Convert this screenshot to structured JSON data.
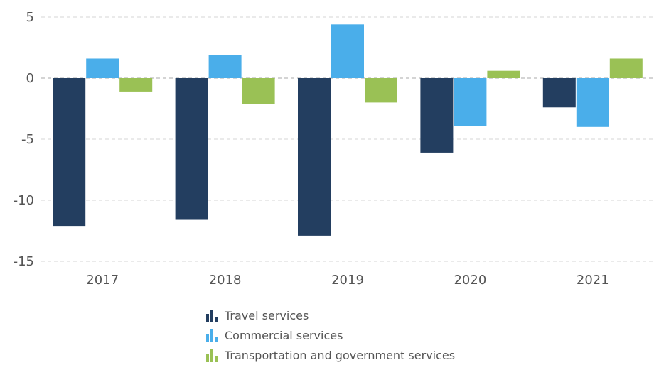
{
  "chart_data": {
    "type": "bar",
    "categories": [
      "2017",
      "2018",
      "2019",
      "2020",
      "2021"
    ],
    "series": [
      {
        "name": "Travel services",
        "color": "#233e60",
        "values": [
          -12.1,
          -11.6,
          -12.9,
          -6.1,
          -2.4
        ]
      },
      {
        "name": "Commercial services",
        "color": "#4aaeea",
        "values": [
          1.6,
          1.9,
          4.4,
          -3.9,
          -4.0
        ]
      },
      {
        "name": "Transportation and government services",
        "color": "#9ac155",
        "values": [
          -1.1,
          -2.1,
          -2.0,
          0.6,
          1.6
        ]
      }
    ],
    "y_ticks": [
      "5",
      "0",
      "-5",
      "-10",
      "-15"
    ],
    "ylim": [
      -15,
      5
    ],
    "grid": true,
    "legend_position": "bottom"
  }
}
